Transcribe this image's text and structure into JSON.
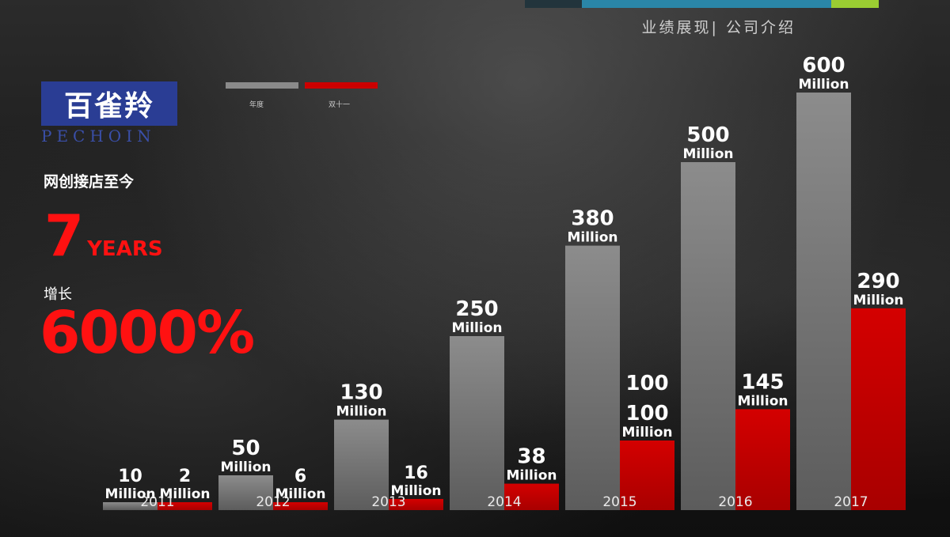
{
  "header": {
    "title": "业绩展现| 公司介绍"
  },
  "brand": {
    "name": "百雀羚",
    "latin": "PECHOIN"
  },
  "legend": {
    "annual": "年度",
    "double11": "双十一"
  },
  "stats": {
    "since_label": "网创接店至今",
    "years_num": "7",
    "years_unit": "YEARS",
    "growth_label": "增长",
    "growth_value": "6000%"
  },
  "colors": {
    "annual": "#8a8a8a",
    "double11": "#cc0000",
    "accent_red": "#ff1111",
    "topbar_blue": "#2a86a8",
    "topbar_green": "#9acd32"
  },
  "chart_data": {
    "type": "bar",
    "unit": "Million",
    "categories": [
      "2011",
      "2012",
      "2013",
      "2014",
      "2015",
      "2016",
      "2017"
    ],
    "series": [
      {
        "name": "年度",
        "values": [
          10,
          50,
          130,
          250,
          380,
          500,
          600
        ],
        "labels": [
          "10",
          "50",
          "130",
          "250",
          "380",
          "500",
          "600"
        ]
      },
      {
        "name": "双十一",
        "values": [
          2,
          6,
          16,
          38,
          100,
          145,
          290
        ],
        "labels": [
          "2",
          "6",
          "16",
          "38",
          "100",
          "145",
          "290"
        ]
      }
    ],
    "extra_labels": [
      {
        "category": "2015",
        "text": "100"
      }
    ]
  }
}
